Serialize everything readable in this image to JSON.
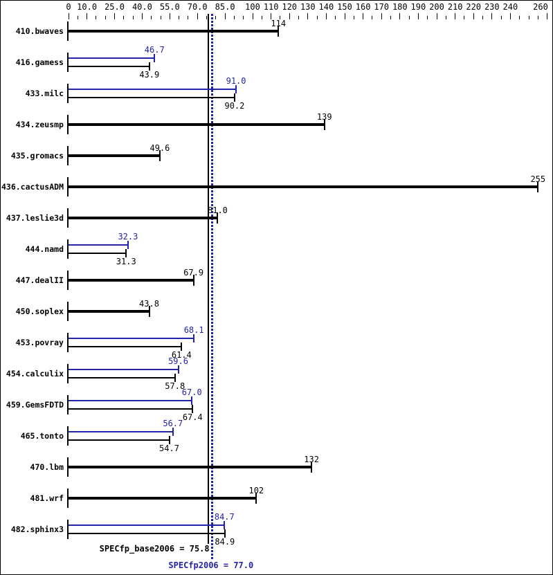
{
  "colors": {
    "base": "#000000",
    "peak": "#2323aa",
    "background": "#ffffff"
  },
  "footer": {
    "base_summary": "SPECfp_base2006 = 75.8",
    "peak_summary": "SPECfp2006 = 77.0"
  },
  "chart_data": {
    "type": "bar",
    "orientation": "horizontal",
    "title": "",
    "xlim": [
      0,
      262
    ],
    "grid": false,
    "x_axis": {
      "tick_step": 5,
      "max": 260,
      "labels": [
        {
          "v": 0,
          "t": "0"
        },
        {
          "v": 10,
          "t": "10.0"
        },
        {
          "v": 25,
          "t": "25.0"
        },
        {
          "v": 40,
          "t": "40.0"
        },
        {
          "v": 55,
          "t": "55.0"
        },
        {
          "v": 70,
          "t": "70.0"
        },
        {
          "v": 85,
          "t": "85.0"
        },
        {
          "v": 100,
          "t": "100"
        },
        {
          "v": 110,
          "t": "110"
        },
        {
          "v": 120,
          "t": "120"
        },
        {
          "v": 130,
          "t": "130"
        },
        {
          "v": 140,
          "t": "140"
        },
        {
          "v": 150,
          "t": "150"
        },
        {
          "v": 160,
          "t": "160"
        },
        {
          "v": 170,
          "t": "170"
        },
        {
          "v": 180,
          "t": "180"
        },
        {
          "v": 190,
          "t": "190"
        },
        {
          "v": 200,
          "t": "200"
        },
        {
          "v": 210,
          "t": "210"
        },
        {
          "v": 220,
          "t": "220"
        },
        {
          "v": 230,
          "t": "230"
        },
        {
          "v": 240,
          "t": "240"
        },
        {
          "v": 260,
          "t": "260"
        }
      ]
    },
    "categories": [
      "410.bwaves",
      "416.gamess",
      "433.milc",
      "434.zeusmp",
      "435.gromacs",
      "436.cactusADM",
      "437.leslie3d",
      "444.namd",
      "447.dealII",
      "450.soplex",
      "453.povray",
      "454.calculix",
      "459.GemsFDTD",
      "465.tonto",
      "470.lbm",
      "481.wrf",
      "482.sphinx3"
    ],
    "series": [
      {
        "name": "SPECfp2006 (peak)",
        "color": "#2323aa",
        "values": [
          null,
          46.7,
          91.0,
          null,
          null,
          null,
          null,
          32.3,
          null,
          null,
          68.1,
          59.6,
          67.0,
          56.7,
          null,
          null,
          84.7
        ],
        "labels": [
          null,
          "46.7",
          "91.0",
          null,
          null,
          null,
          null,
          "32.3",
          null,
          null,
          "68.1",
          "59.6",
          "67.0",
          "56.7",
          null,
          null,
          "84.7"
        ]
      },
      {
        "name": "SPECfp_base2006 (base)",
        "color": "#000000",
        "values": [
          114,
          43.9,
          90.2,
          139,
          49.6,
          255,
          81.0,
          31.3,
          67.9,
          43.8,
          61.4,
          57.8,
          67.4,
          54.7,
          132,
          102,
          84.9
        ],
        "labels": [
          "114",
          "43.9",
          "90.2",
          "139",
          "49.6",
          "255",
          "81.0",
          "31.3",
          "67.9",
          "43.8",
          "61.4",
          "57.8",
          "67.4",
          "54.7",
          "132",
          "102",
          "84.9"
        ]
      }
    ],
    "reference_lines": [
      {
        "name": "base_mean",
        "value": 75.8,
        "style": "solid",
        "color": "#000000"
      },
      {
        "name": "peak_mean",
        "value": 77.0,
        "style": "dotted",
        "color": "#2323aa"
      }
    ]
  }
}
